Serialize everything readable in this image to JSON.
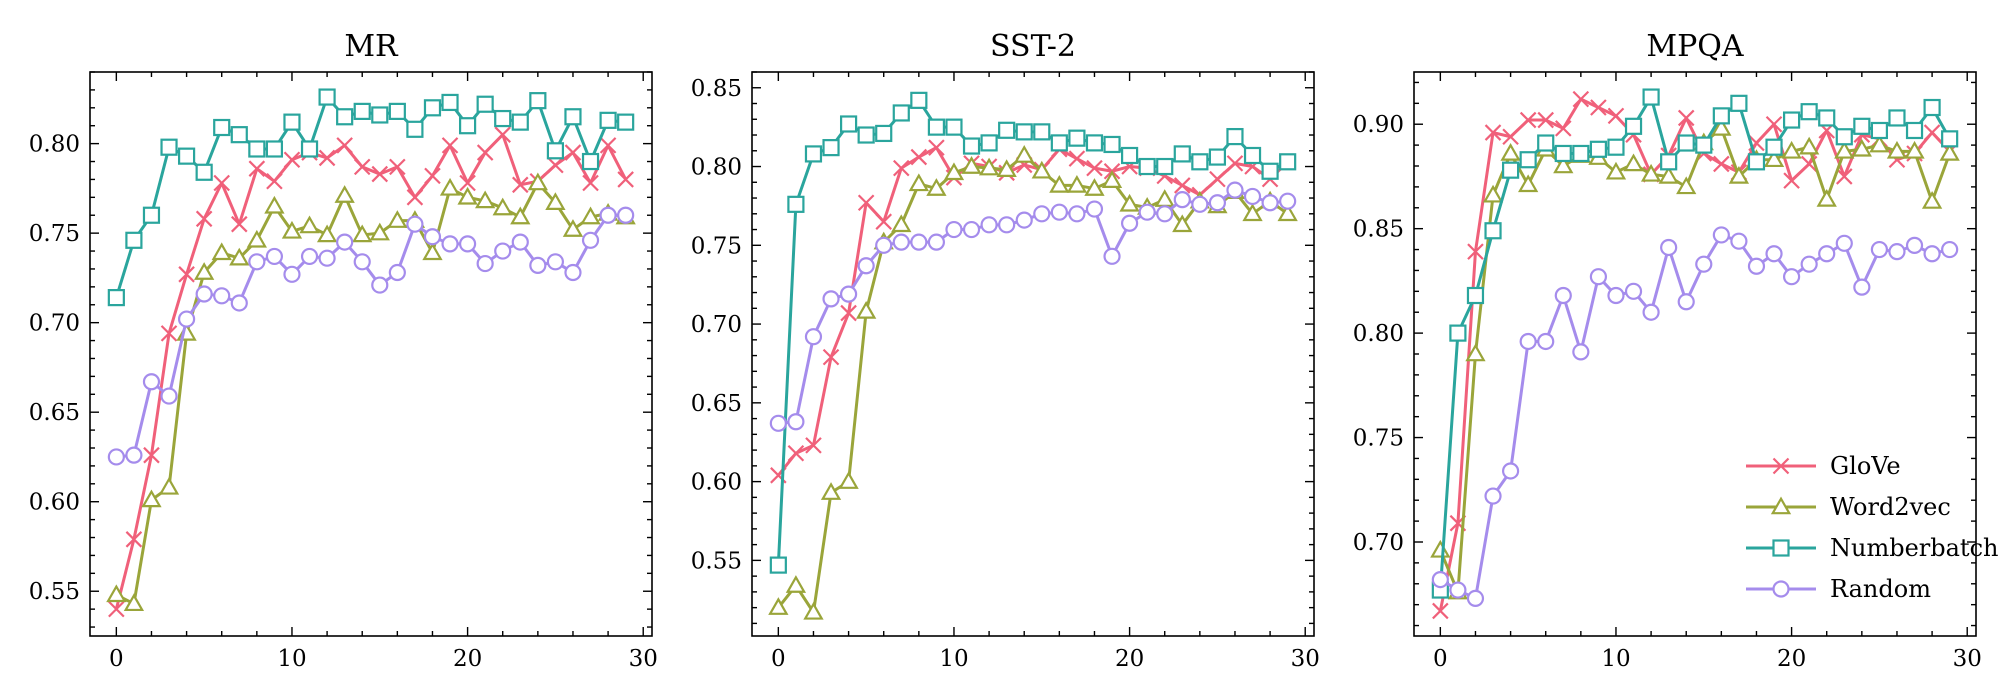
{
  "chart_data": [
    {
      "type": "line",
      "title": "MR",
      "xlabel": "",
      "ylabel": "",
      "xlim": [
        -1.5,
        30.5
      ],
      "ylim": [
        0.525,
        0.84
      ],
      "xticks": [
        0,
        10,
        20,
        30
      ],
      "yticks": [
        0.55,
        0.6,
        0.65,
        0.7,
        0.75,
        0.8
      ],
      "x": [
        0,
        1,
        2,
        3,
        4,
        5,
        6,
        7,
        8,
        9,
        10,
        11,
        12,
        13,
        14,
        15,
        16,
        17,
        18,
        19,
        20,
        21,
        22,
        23,
        24,
        25,
        26,
        27,
        28,
        29
      ],
      "series": [
        {
          "name": "GloVe",
          "marker": "x",
          "color": "#f0607a",
          "values": [
            0.54,
            0.579,
            0.626,
            0.694,
            0.727,
            0.758,
            0.778,
            0.755,
            0.786,
            0.779,
            0.791,
            0.795,
            0.792,
            0.799,
            0.787,
            0.783,
            0.787,
            0.77,
            0.782,
            0.799,
            0.778,
            0.795,
            0.805,
            0.777,
            0.779,
            0.788,
            0.795,
            0.778,
            0.799,
            0.78
          ]
        },
        {
          "name": "Word2vec",
          "marker": "triangle",
          "color": "#9aa53a",
          "values": [
            0.548,
            0.543,
            0.601,
            0.608,
            0.694,
            0.728,
            0.739,
            0.736,
            0.746,
            0.765,
            0.751,
            0.754,
            0.749,
            0.771,
            0.749,
            0.75,
            0.757,
            0.757,
            0.739,
            0.775,
            0.77,
            0.768,
            0.764,
            0.759,
            0.778,
            0.767,
            0.752,
            0.759,
            0.761,
            0.759
          ]
        },
        {
          "name": "Numberbatch",
          "marker": "square",
          "color": "#2aa59d",
          "values": [
            0.714,
            0.746,
            0.76,
            0.798,
            0.793,
            0.784,
            0.809,
            0.805,
            0.797,
            0.797,
            0.812,
            0.797,
            0.826,
            0.815,
            0.818,
            0.816,
            0.818,
            0.808,
            0.82,
            0.823,
            0.81,
            0.822,
            0.814,
            0.812,
            0.824,
            0.796,
            0.815,
            0.79,
            0.813,
            0.812
          ]
        },
        {
          "name": "Random",
          "marker": "circle",
          "color": "#a58cec",
          "values": [
            0.625,
            0.626,
            0.667,
            0.659,
            0.702,
            0.716,
            0.715,
            0.711,
            0.734,
            0.737,
            0.727,
            0.737,
            0.736,
            0.745,
            0.734,
            0.721,
            0.728,
            0.755,
            0.748,
            0.744,
            0.744,
            0.733,
            0.74,
            0.745,
            0.732,
            0.734,
            0.728,
            0.746,
            0.76,
            0.76
          ]
        }
      ]
    },
    {
      "type": "line",
      "title": "SST-2",
      "xlabel": "",
      "ylabel": "",
      "xlim": [
        -1.5,
        30.5
      ],
      "ylim": [
        0.502,
        0.86
      ],
      "xticks": [
        0,
        10,
        20,
        30
      ],
      "yticks": [
        0.55,
        0.6,
        0.65,
        0.7,
        0.75,
        0.8,
        0.85
      ],
      "x": [
        0,
        1,
        2,
        3,
        4,
        5,
        6,
        7,
        8,
        9,
        10,
        11,
        12,
        13,
        14,
        15,
        16,
        17,
        18,
        19,
        20,
        21,
        22,
        23,
        24,
        25,
        26,
        27,
        28,
        29
      ],
      "series": [
        {
          "name": "GloVe",
          "marker": "x",
          "color": "#f0607a",
          "values": [
            0.604,
            0.618,
            0.623,
            0.679,
            0.707,
            0.777,
            0.765,
            0.799,
            0.806,
            0.812,
            0.793,
            0.802,
            0.8,
            0.796,
            0.801,
            0.798,
            0.811,
            0.805,
            0.799,
            0.797,
            0.8,
            0.799,
            0.794,
            0.788,
            0.782,
            0.792,
            0.802,
            0.8,
            0.792,
            0.803
          ]
        },
        {
          "name": "Word2vec",
          "marker": "triangle",
          "color": "#9aa53a",
          "values": [
            0.52,
            0.534,
            0.517,
            0.593,
            0.6,
            0.708,
            0.752,
            0.763,
            0.789,
            0.786,
            0.796,
            0.8,
            0.799,
            0.798,
            0.807,
            0.797,
            0.788,
            0.788,
            0.786,
            0.791,
            0.776,
            0.774,
            0.779,
            0.763,
            0.778,
            0.775,
            0.784,
            0.77,
            0.778,
            0.77
          ]
        },
        {
          "name": "Numberbatch",
          "marker": "square",
          "color": "#2aa59d",
          "values": [
            0.547,
            0.776,
            0.808,
            0.812,
            0.827,
            0.82,
            0.821,
            0.834,
            0.842,
            0.825,
            0.825,
            0.813,
            0.815,
            0.823,
            0.822,
            0.822,
            0.815,
            0.818,
            0.815,
            0.814,
            0.807,
            0.8,
            0.8,
            0.808,
            0.803,
            0.806,
            0.819,
            0.807,
            0.797,
            0.803
          ]
        },
        {
          "name": "Random",
          "marker": "circle",
          "color": "#a58cec",
          "values": [
            0.637,
            0.638,
            0.692,
            0.716,
            0.719,
            0.737,
            0.75,
            0.752,
            0.752,
            0.752,
            0.76,
            0.76,
            0.763,
            0.763,
            0.766,
            0.77,
            0.771,
            0.77,
            0.773,
            0.743,
            0.764,
            0.771,
            0.77,
            0.779,
            0.776,
            0.777,
            0.785,
            0.781,
            0.777,
            0.778
          ]
        }
      ]
    },
    {
      "type": "line",
      "title": "MPQA",
      "xlabel": "",
      "ylabel": "",
      "xlim": [
        -1.5,
        30.5
      ],
      "ylim": [
        0.655,
        0.925
      ],
      "xticks": [
        0,
        10,
        20,
        30
      ],
      "yticks": [
        0.7,
        0.75,
        0.8,
        0.85,
        0.9
      ],
      "legend": "lower-right",
      "x": [
        0,
        1,
        2,
        3,
        4,
        5,
        6,
        7,
        8,
        9,
        10,
        11,
        12,
        13,
        14,
        15,
        16,
        17,
        18,
        19,
        20,
        21,
        22,
        23,
        24,
        25,
        26,
        27,
        28,
        29
      ],
      "series": [
        {
          "name": "GloVe",
          "marker": "x",
          "color": "#f0607a",
          "values": [
            0.667,
            0.709,
            0.839,
            0.896,
            0.894,
            0.902,
            0.902,
            0.898,
            0.912,
            0.908,
            0.904,
            0.895,
            0.876,
            0.885,
            0.903,
            0.886,
            0.881,
            0.877,
            0.891,
            0.9,
            0.873,
            0.881,
            0.897,
            0.875,
            0.895,
            0.893,
            0.883,
            0.886,
            0.896,
            0.887
          ]
        },
        {
          "name": "Word2vec",
          "marker": "triangle",
          "color": "#9aa53a",
          "values": [
            0.696,
            0.676,
            0.79,
            0.866,
            0.886,
            0.871,
            0.888,
            0.88,
            0.885,
            0.884,
            0.877,
            0.881,
            0.876,
            0.875,
            0.87,
            0.891,
            0.898,
            0.875,
            0.883,
            0.883,
            0.887,
            0.889,
            0.864,
            0.887,
            0.888,
            0.89,
            0.887,
            0.887,
            0.863,
            0.886
          ]
        },
        {
          "name": "Numberbatch",
          "marker": "square",
          "color": "#2aa59d",
          "values": [
            0.677,
            0.8,
            0.818,
            0.849,
            0.878,
            0.883,
            0.891,
            0.886,
            0.886,
            0.888,
            0.889,
            0.899,
            0.913,
            0.882,
            0.891,
            0.89,
            0.904,
            0.91,
            0.882,
            0.889,
            0.902,
            0.906,
            0.903,
            0.894,
            0.899,
            0.897,
            0.903,
            0.897,
            0.908,
            0.893
          ]
        },
        {
          "name": "Random",
          "marker": "circle",
          "color": "#a58cec",
          "values": [
            0.682,
            0.677,
            0.673,
            0.722,
            0.734,
            0.796,
            0.796,
            0.818,
            0.791,
            0.827,
            0.818,
            0.82,
            0.81,
            0.841,
            0.815,
            0.833,
            0.847,
            0.844,
            0.832,
            0.838,
            0.827,
            0.833,
            0.838,
            0.843,
            0.822,
            0.84,
            0.839,
            0.842,
            0.838,
            0.84
          ]
        }
      ]
    }
  ]
}
